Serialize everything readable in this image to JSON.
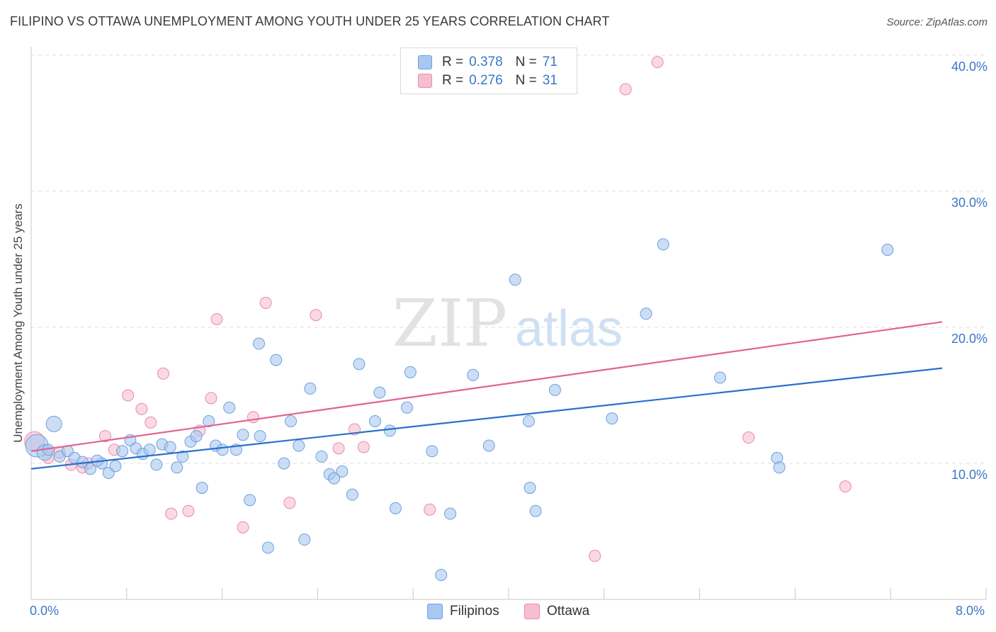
{
  "title": "FILIPINO VS OTTAWA UNEMPLOYMENT AMONG YOUTH UNDER 25 YEARS CORRELATION CHART",
  "source": "Source: ZipAtlas.com",
  "watermark": {
    "zip": "ZIP",
    "atlas": "atlas"
  },
  "legend": {
    "filipinos": {
      "r_label": "R =",
      "r_value": "0.378",
      "n_label": "N =",
      "n_value": "71"
    },
    "ottawa": {
      "r_label": "R =",
      "r_value": "0.276",
      "n_label": "N =",
      "n_value": "31"
    }
  },
  "colors": {
    "filipinos_fill": "#a9c8f0",
    "filipinos_stroke": "#6d9fdc",
    "filipinos_line": "#2a6fcf",
    "ottawa_fill": "#f6bfd0",
    "ottawa_stroke": "#e88aa8",
    "ottawa_line": "#e2638f",
    "tick_text": "#3a76c4",
    "grid": "#dcdcdc"
  },
  "chart_data": {
    "type": "scatter",
    "title": "FILIPINO VS OTTAWA UNEMPLOYMENT AMONG YOUTH UNDER 25 YEARS CORRELATION CHART",
    "xlabel": "",
    "ylabel": "Unemployment Among Youth under 25 years",
    "xlim": [
      0,
      8
    ],
    "ylim": [
      0,
      40
    ],
    "x_tick_labels": [
      "0.0%",
      "8.0%"
    ],
    "y_ticks": [
      10,
      20,
      30,
      40
    ],
    "y_tick_labels": [
      "10.0%",
      "20.0%",
      "30.0%",
      "40.0%"
    ],
    "grid": true,
    "legend_position": "top-center",
    "series": [
      {
        "name": "Filipinos",
        "r": 0.378,
        "n": 71,
        "trend": {
          "x": [
            0,
            8
          ],
          "y": [
            9.6,
            17.0
          ]
        },
        "points": [
          {
            "x": 0.05,
            "y": 11.3,
            "s": 16
          },
          {
            "x": 0.12,
            "y": 10.8,
            "s": 11
          },
          {
            "x": 0.2,
            "y": 12.9,
            "s": 11
          },
          {
            "x": 0.25,
            "y": 10.5,
            "s": 8
          },
          {
            "x": 0.32,
            "y": 10.9,
            "s": 8
          },
          {
            "x": 0.38,
            "y": 10.4,
            "s": 8
          },
          {
            "x": 0.45,
            "y": 10.1,
            "s": 8
          },
          {
            "x": 0.52,
            "y": 9.6,
            "s": 8
          },
          {
            "x": 0.62,
            "y": 10.0,
            "s": 8
          },
          {
            "x": 0.68,
            "y": 9.3,
            "s": 8
          },
          {
            "x": 0.74,
            "y": 9.8,
            "s": 8
          },
          {
            "x": 0.8,
            "y": 10.9,
            "s": 8
          },
          {
            "x": 0.87,
            "y": 11.7,
            "s": 8
          },
          {
            "x": 0.92,
            "y": 11.1,
            "s": 8
          },
          {
            "x": 0.98,
            "y": 10.7,
            "s": 8
          },
          {
            "x": 1.04,
            "y": 11.0,
            "s": 8
          },
          {
            "x": 1.1,
            "y": 9.9,
            "s": 8
          },
          {
            "x": 1.15,
            "y": 11.4,
            "s": 8
          },
          {
            "x": 1.22,
            "y": 11.2,
            "s": 8
          },
          {
            "x": 1.28,
            "y": 9.7,
            "s": 8
          },
          {
            "x": 1.33,
            "y": 10.5,
            "s": 8
          },
          {
            "x": 1.4,
            "y": 11.6,
            "s": 8
          },
          {
            "x": 1.45,
            "y": 12.0,
            "s": 8
          },
          {
            "x": 1.5,
            "y": 8.2,
            "s": 8
          },
          {
            "x": 1.56,
            "y": 13.1,
            "s": 8
          },
          {
            "x": 1.62,
            "y": 11.3,
            "s": 8
          },
          {
            "x": 1.68,
            "y": 11.0,
            "s": 8
          },
          {
            "x": 1.74,
            "y": 14.1,
            "s": 8
          },
          {
            "x": 1.8,
            "y": 11.0,
            "s": 8
          },
          {
            "x": 1.86,
            "y": 12.1,
            "s": 8
          },
          {
            "x": 1.92,
            "y": 7.3,
            "s": 8
          },
          {
            "x": 2.0,
            "y": 18.8,
            "s": 8
          },
          {
            "x": 2.01,
            "y": 12.0,
            "s": 8
          },
          {
            "x": 2.08,
            "y": 3.8,
            "s": 8
          },
          {
            "x": 2.15,
            "y": 17.6,
            "s": 8
          },
          {
            "x": 2.22,
            "y": 10.0,
            "s": 8
          },
          {
            "x": 2.28,
            "y": 13.1,
            "s": 8
          },
          {
            "x": 2.35,
            "y": 11.3,
            "s": 8
          },
          {
            "x": 2.4,
            "y": 4.4,
            "s": 8
          },
          {
            "x": 2.45,
            "y": 15.5,
            "s": 8
          },
          {
            "x": 2.55,
            "y": 10.5,
            "s": 8
          },
          {
            "x": 2.62,
            "y": 9.2,
            "s": 8
          },
          {
            "x": 2.66,
            "y": 8.9,
            "s": 8
          },
          {
            "x": 2.73,
            "y": 9.4,
            "s": 8
          },
          {
            "x": 2.82,
            "y": 7.7,
            "s": 8
          },
          {
            "x": 2.88,
            "y": 17.3,
            "s": 8
          },
          {
            "x": 3.02,
            "y": 13.1,
            "s": 8
          },
          {
            "x": 3.06,
            "y": 15.2,
            "s": 8
          },
          {
            "x": 3.15,
            "y": 12.4,
            "s": 8
          },
          {
            "x": 3.2,
            "y": 6.7,
            "s": 8
          },
          {
            "x": 3.3,
            "y": 14.1,
            "s": 8
          },
          {
            "x": 3.33,
            "y": 16.7,
            "s": 8
          },
          {
            "x": 3.52,
            "y": 10.9,
            "s": 8
          },
          {
            "x": 3.6,
            "y": 1.8,
            "s": 8
          },
          {
            "x": 3.68,
            "y": 6.3,
            "s": 8
          },
          {
            "x": 3.88,
            "y": 16.5,
            "s": 8
          },
          {
            "x": 4.02,
            "y": 11.3,
            "s": 8
          },
          {
            "x": 4.25,
            "y": 23.5,
            "s": 8
          },
          {
            "x": 4.37,
            "y": 13.1,
            "s": 8
          },
          {
            "x": 4.38,
            "y": 8.2,
            "s": 8
          },
          {
            "x": 4.43,
            "y": 6.5,
            "s": 8
          },
          {
            "x": 4.6,
            "y": 15.4,
            "s": 8
          },
          {
            "x": 5.1,
            "y": 13.3,
            "s": 8
          },
          {
            "x": 5.4,
            "y": 21.0,
            "s": 8
          },
          {
            "x": 5.55,
            "y": 26.1,
            "s": 8
          },
          {
            "x": 6.05,
            "y": 16.3,
            "s": 8
          },
          {
            "x": 6.55,
            "y": 10.4,
            "s": 8
          },
          {
            "x": 6.57,
            "y": 9.7,
            "s": 8
          },
          {
            "x": 7.52,
            "y": 25.7,
            "s": 8
          },
          {
            "x": 0.15,
            "y": 11.0,
            "s": 8
          },
          {
            "x": 0.58,
            "y": 10.2,
            "s": 8
          }
        ]
      },
      {
        "name": "Ottawa",
        "r": 0.276,
        "n": 31,
        "trend": {
          "x": [
            0,
            8
          ],
          "y": [
            10.9,
            20.4
          ]
        },
        "points": [
          {
            "x": 0.03,
            "y": 11.6,
            "s": 14
          },
          {
            "x": 0.15,
            "y": 10.4,
            "s": 8
          },
          {
            "x": 0.25,
            "y": 10.8,
            "s": 8
          },
          {
            "x": 0.35,
            "y": 9.9,
            "s": 8
          },
          {
            "x": 0.45,
            "y": 9.7,
            "s": 8
          },
          {
            "x": 0.5,
            "y": 10.0,
            "s": 8
          },
          {
            "x": 0.65,
            "y": 12.0,
            "s": 8
          },
          {
            "x": 0.73,
            "y": 11.0,
            "s": 8
          },
          {
            "x": 0.85,
            "y": 15.0,
            "s": 8
          },
          {
            "x": 0.97,
            "y": 14.0,
            "s": 8
          },
          {
            "x": 1.05,
            "y": 13.0,
            "s": 8
          },
          {
            "x": 1.16,
            "y": 16.6,
            "s": 8
          },
          {
            "x": 1.23,
            "y": 6.3,
            "s": 8
          },
          {
            "x": 1.38,
            "y": 6.5,
            "s": 8
          },
          {
            "x": 1.48,
            "y": 12.4,
            "s": 8
          },
          {
            "x": 1.58,
            "y": 14.8,
            "s": 8
          },
          {
            "x": 1.63,
            "y": 20.6,
            "s": 8
          },
          {
            "x": 1.86,
            "y": 5.3,
            "s": 8
          },
          {
            "x": 1.95,
            "y": 13.4,
            "s": 8
          },
          {
            "x": 2.06,
            "y": 21.8,
            "s": 8
          },
          {
            "x": 2.27,
            "y": 7.1,
            "s": 8
          },
          {
            "x": 2.5,
            "y": 20.9,
            "s": 8
          },
          {
            "x": 2.7,
            "y": 11.1,
            "s": 8
          },
          {
            "x": 2.84,
            "y": 12.5,
            "s": 8
          },
          {
            "x": 2.92,
            "y": 11.2,
            "s": 8
          },
          {
            "x": 3.5,
            "y": 6.6,
            "s": 8
          },
          {
            "x": 4.95,
            "y": 3.2,
            "s": 8
          },
          {
            "x": 5.22,
            "y": 37.5,
            "s": 8
          },
          {
            "x": 5.5,
            "y": 39.5,
            "s": 8
          },
          {
            "x": 6.3,
            "y": 11.9,
            "s": 8
          },
          {
            "x": 7.15,
            "y": 8.3,
            "s": 8
          }
        ]
      }
    ]
  },
  "bottom_legend": {
    "filipinos": "Filipinos",
    "ottawa": "Ottawa"
  }
}
